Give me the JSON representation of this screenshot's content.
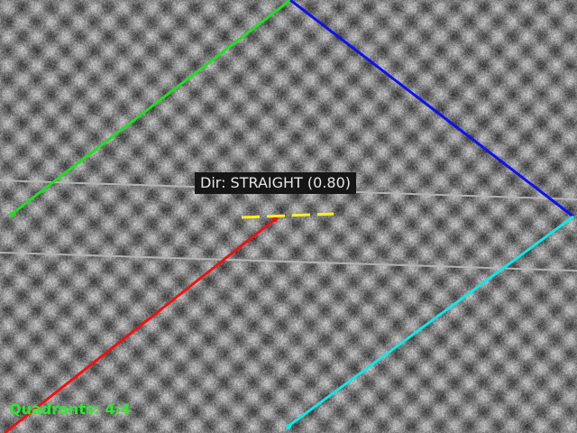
{
  "direction_label": {
    "prefix": "Dir:",
    "value": "STRAIGHT",
    "confidence": "(0.80)",
    "full": "Dir: STRAIGHT (0.80)"
  },
  "quadrants": {
    "text": "Quadrants: 4/4",
    "detected": 4,
    "total": 4
  },
  "colors": {
    "top_left_line": "#22dd22",
    "top_right_line": "#1010ee",
    "bottom_left_line": "#ee1111",
    "bottom_right_line": "#11e6e6",
    "center_marker": "#ffee22",
    "horizon_lines": "#b4b4b4",
    "label_background": "#161616",
    "label_text": "#e6e6e6",
    "quadrant_text": "#2ee82e"
  }
}
